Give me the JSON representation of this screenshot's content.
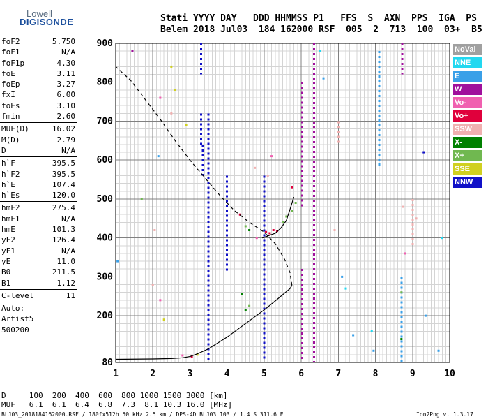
{
  "logo": {
    "line1": "Lowell",
    "line2": "DIGISONDE"
  },
  "header": {
    "line1": "Stati YYYY DAY   DDD HHMMSS P1   FFS  S  AXN  PPS  IGA  PS",
    "line2": "Belem 2018 Jul03  184 162000 RSF  005  2  713  100  03+  B5"
  },
  "params": {
    "group1": [
      {
        "name": "foF2",
        "value": "5.750"
      },
      {
        "name": "foF1",
        "value": "N/A"
      },
      {
        "name": "foF1p",
        "value": "4.30"
      },
      {
        "name": "foE",
        "value": "3.11"
      },
      {
        "name": "foEp",
        "value": "3.27"
      },
      {
        "name": "fxI",
        "value": "6.00"
      },
      {
        "name": "foEs",
        "value": "3.10"
      },
      {
        "name": "fmin",
        "value": "2.60"
      }
    ],
    "group2": [
      {
        "name": "MUF(D)",
        "value": "16.02"
      },
      {
        "name": "M(D)",
        "value": "2.79"
      },
      {
        "name": "D",
        "value": "N/A"
      }
    ],
    "group3": [
      {
        "name": "h`F",
        "value": "395.5"
      },
      {
        "name": "h`F2",
        "value": "395.5"
      },
      {
        "name": "h`E",
        "value": "107.4"
      },
      {
        "name": "h`Es",
        "value": "120.0"
      }
    ],
    "group4": [
      {
        "name": "hmF2",
        "value": "275.4"
      },
      {
        "name": "hmF1",
        "value": "N/A"
      },
      {
        "name": "hmE",
        "value": "101.3"
      },
      {
        "name": "yF2",
        "value": "126.4"
      },
      {
        "name": "yF1",
        "value": "N/A"
      },
      {
        "name": "yE",
        "value": "11.0"
      },
      {
        "name": "B0",
        "value": "211.5"
      },
      {
        "name": "B1",
        "value": "1.12"
      }
    ],
    "clevel": {
      "name": "C-level",
      "value": "11"
    },
    "auto": [
      "Auto:",
      "Artist5",
      "500200"
    ]
  },
  "legend": [
    {
      "label": "NoVal",
      "color": "#a0a0a0",
      "text_color": "#ffffff"
    },
    {
      "label": "NNE",
      "color": "#22d8f0",
      "text_color": "#ffffff"
    },
    {
      "label": "E",
      "color": "#3aa0e8",
      "text_color": "#ffffff"
    },
    {
      "label": "W",
      "color": "#a0109c",
      "text_color": "#ffffff"
    },
    {
      "label": "Vo-",
      "color": "#f060b0",
      "text_color": "#ffffff"
    },
    {
      "label": "Vo+",
      "color": "#e0003c",
      "text_color": "#ffffff"
    },
    {
      "label": "SSW",
      "color": "#f0b0b0",
      "text_color": "#ffffff"
    },
    {
      "label": "X-",
      "color": "#008000",
      "text_color": "#ffffff"
    },
    {
      "label": "X+",
      "color": "#70b850",
      "text_color": "#ffffff"
    },
    {
      "label": "SSE",
      "color": "#d0d020",
      "text_color": "#ffffff"
    },
    {
      "label": "NNW",
      "color": "#1010c8",
      "text_color": "#ffffff"
    }
  ],
  "footer": {
    "line1": "D     100  200  400  600  800 1000 1500 3000 [km]",
    "line2": "MUF   6.1  6.1  6.4  6.8  7.3  8.1 10.3 16.0 [MHz]",
    "line3": "BLJ03_2018184162000.RSF / 180fx512h 50 kHz 2.5 km / DPS-4D BLJ03 103 / 1.4 S 311.6 E",
    "version": "Ion2Png v. 1.3.17"
  },
  "chart_data": {
    "type": "scatter",
    "xlabel": "",
    "ylabel": "",
    "xlim": [
      1,
      10
    ],
    "ylim": [
      80,
      900
    ],
    "x_ticks": [
      1,
      2,
      3,
      4,
      5,
      6,
      7,
      8,
      9,
      10
    ],
    "y_ticks": [
      80,
      200,
      300,
      400,
      500,
      600,
      700,
      800,
      900
    ],
    "x_minor_step": 0.1,
    "y_minor_step": 20,
    "grid": true,
    "series": [
      {
        "style": "solid",
        "color": "#000000",
        "points": [
          [
            1.0,
            88
          ],
          [
            2.0,
            89
          ],
          [
            2.5,
            90
          ],
          [
            2.8,
            92
          ],
          [
            3.0,
            95
          ],
          [
            3.2,
            102
          ],
          [
            3.5,
            115
          ],
          [
            4.0,
            145
          ],
          [
            4.5,
            180
          ],
          [
            5.0,
            215
          ],
          [
            5.3,
            238
          ],
          [
            5.6,
            262
          ],
          [
            5.7,
            270
          ],
          [
            5.75,
            278
          ]
        ]
      },
      {
        "style": "dashed",
        "color": "#000000",
        "points": [
          [
            5.75,
            278
          ],
          [
            5.7,
            310
          ],
          [
            5.55,
            345
          ],
          [
            5.3,
            385
          ],
          [
            5.0,
            415
          ],
          [
            4.6,
            440
          ],
          [
            4.2,
            470
          ],
          [
            3.8,
            510
          ],
          [
            3.4,
            555
          ],
          [
            3.0,
            600
          ],
          [
            2.6,
            650
          ],
          [
            2.2,
            705
          ],
          [
            1.8,
            755
          ],
          [
            1.4,
            805
          ],
          [
            1.0,
            840
          ]
        ]
      },
      {
        "style": "solid",
        "color": "#000000",
        "points": [
          [
            4.95,
            400
          ],
          [
            5.05,
            403
          ],
          [
            5.15,
            407
          ],
          [
            5.3,
            412
          ],
          [
            5.45,
            425
          ],
          [
            5.6,
            445
          ],
          [
            5.72,
            480
          ],
          [
            5.8,
            505
          ]
        ]
      }
    ],
    "echo_columns": [
      {
        "x": 3.3,
        "y_start": 820,
        "y_end": 900,
        "color": "#1010c8"
      },
      {
        "x": 3.3,
        "y_start": 640,
        "y_end": 720,
        "color": "#1010c8"
      },
      {
        "x": 3.35,
        "y_start": 560,
        "y_end": 640,
        "color": "#1010c8"
      },
      {
        "x": 3.5,
        "y_start": 80,
        "y_end": 720,
        "color": "#1010c8"
      },
      {
        "x": 4.0,
        "y_start": 310,
        "y_end": 560,
        "color": "#1010c8"
      },
      {
        "x": 5.0,
        "y_start": 90,
        "y_end": 560,
        "color": "#1010c8"
      },
      {
        "x": 6.03,
        "y_start": 80,
        "y_end": 320,
        "color": "#a0109c"
      },
      {
        "x": 6.03,
        "y_start": 480,
        "y_end": 800,
        "color": "#a0109c"
      },
      {
        "x": 6.35,
        "y_start": 80,
        "y_end": 900,
        "color": "#a0109c"
      },
      {
        "x": 7.0,
        "y_start": 640,
        "y_end": 700,
        "color": "#f0b0b0"
      },
      {
        "x": 8.1,
        "y_start": 580,
        "y_end": 880,
        "color": "#3aa0e8"
      },
      {
        "x": 8.7,
        "y_start": 80,
        "y_end": 300,
        "color": "#3aa0e8"
      },
      {
        "x": 8.72,
        "y_start": 820,
        "y_end": 900,
        "color": "#a0109c"
      },
      {
        "x": 9.0,
        "y_start": 380,
        "y_end": 500,
        "color": "#f0b0b0"
      }
    ],
    "echo_dots": [
      {
        "x": 1.45,
        "y": 880,
        "color": "#a0109c"
      },
      {
        "x": 2.15,
        "y": 610,
        "color": "#3aa0e8"
      },
      {
        "x": 2.2,
        "y": 760,
        "color": "#f060b0"
      },
      {
        "x": 2.5,
        "y": 720,
        "color": "#f0b0b0"
      },
      {
        "x": 2.6,
        "y": 780,
        "color": "#d0d020"
      },
      {
        "x": 2.5,
        "y": 840,
        "color": "#d0d020"
      },
      {
        "x": 2.9,
        "y": 690,
        "color": "#d0d020"
      },
      {
        "x": 2.05,
        "y": 420,
        "color": "#f0b0b0"
      },
      {
        "x": 2.0,
        "y": 280,
        "color": "#f0b0b0"
      },
      {
        "x": 2.3,
        "y": 190,
        "color": "#d0d020"
      },
      {
        "x": 2.2,
        "y": 240,
        "color": "#f060b0"
      },
      {
        "x": 1.7,
        "y": 500,
        "color": "#70b850"
      },
      {
        "x": 3.2,
        "y": 100,
        "color": "#d0d020"
      },
      {
        "x": 3.05,
        "y": 95,
        "color": "#e0003c"
      },
      {
        "x": 2.8,
        "y": 98,
        "color": "#f060b0"
      },
      {
        "x": 1.05,
        "y": 340,
        "color": "#3aa0e8"
      },
      {
        "x": 4.4,
        "y": 255,
        "color": "#008000"
      },
      {
        "x": 4.5,
        "y": 215,
        "color": "#008000"
      },
      {
        "x": 4.6,
        "y": 225,
        "color": "#70b850"
      },
      {
        "x": 4.5,
        "y": 430,
        "color": "#70b850"
      },
      {
        "x": 4.6,
        "y": 420,
        "color": "#008000"
      },
      {
        "x": 4.35,
        "y": 460,
        "color": "#e0003c"
      },
      {
        "x": 4.8,
        "y": 400,
        "color": "#f060b0"
      },
      {
        "x": 5.05,
        "y": 415,
        "color": "#e0003c"
      },
      {
        "x": 5.15,
        "y": 412,
        "color": "#e0003c"
      },
      {
        "x": 5.25,
        "y": 420,
        "color": "#e0003c"
      },
      {
        "x": 5.35,
        "y": 418,
        "color": "#e0003c"
      },
      {
        "x": 5.5,
        "y": 440,
        "color": "#70b850"
      },
      {
        "x": 5.6,
        "y": 455,
        "color": "#70b850"
      },
      {
        "x": 5.75,
        "y": 470,
        "color": "#70b850"
      },
      {
        "x": 5.85,
        "y": 490,
        "color": "#70b850"
      },
      {
        "x": 5.75,
        "y": 530,
        "color": "#e0003c"
      },
      {
        "x": 5.2,
        "y": 610,
        "color": "#f060b0"
      },
      {
        "x": 4.75,
        "y": 580,
        "color": "#f0b0b0"
      },
      {
        "x": 5.1,
        "y": 560,
        "color": "#f0b0b0"
      },
      {
        "x": 6.5,
        "y": 880,
        "color": "#22d8f0"
      },
      {
        "x": 6.6,
        "y": 810,
        "color": "#3aa0e8"
      },
      {
        "x": 6.9,
        "y": 420,
        "color": "#f0b0b0"
      },
      {
        "x": 7.1,
        "y": 300,
        "color": "#3aa0e8"
      },
      {
        "x": 7.2,
        "y": 270,
        "color": "#22d8f0"
      },
      {
        "x": 7.4,
        "y": 150,
        "color": "#3aa0e8"
      },
      {
        "x": 7.9,
        "y": 160,
        "color": "#22d8f0"
      },
      {
        "x": 7.95,
        "y": 110,
        "color": "#3aa0e8"
      },
      {
        "x": 8.7,
        "y": 140,
        "color": "#008000"
      },
      {
        "x": 8.7,
        "y": 260,
        "color": "#70b850"
      },
      {
        "x": 8.75,
        "y": 480,
        "color": "#f0b0b0"
      },
      {
        "x": 8.8,
        "y": 360,
        "color": "#f060b0"
      },
      {
        "x": 9.1,
        "y": 450,
        "color": "#f0b0b0"
      },
      {
        "x": 9.3,
        "y": 620,
        "color": "#1010c8"
      },
      {
        "x": 9.7,
        "y": 110,
        "color": "#3aa0e8"
      },
      {
        "x": 9.8,
        "y": 400,
        "color": "#22d8f0"
      },
      {
        "x": 9.35,
        "y": 200,
        "color": "#3aa0e8"
      }
    ]
  }
}
